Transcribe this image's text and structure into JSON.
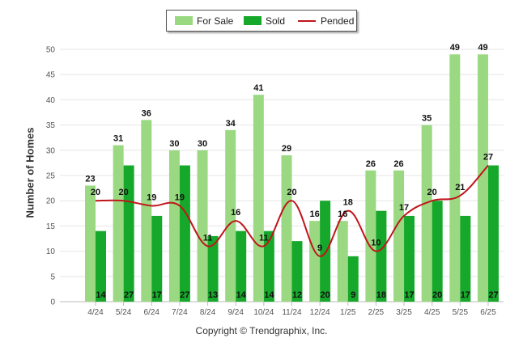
{
  "chart_data": {
    "type": "bar",
    "categories": [
      "4/24",
      "5/24",
      "6/24",
      "7/24",
      "8/24",
      "9/24",
      "10/24",
      "11/24",
      "12/24",
      "1/25",
      "2/25",
      "3/25",
      "4/25",
      "5/25",
      "6/25"
    ],
    "series": [
      {
        "name": "For Sale",
        "kind": "bar",
        "color": "#9ad982",
        "values": [
          23,
          31,
          36,
          30,
          30,
          34,
          41,
          29,
          16,
          16,
          26,
          26,
          35,
          49,
          49
        ]
      },
      {
        "name": "Sold",
        "kind": "bar",
        "color": "#16a82a",
        "values": [
          14,
          27,
          17,
          27,
          13,
          14,
          14,
          12,
          20,
          9,
          18,
          17,
          20,
          17,
          27
        ]
      },
      {
        "name": "Pended",
        "kind": "line",
        "color": "#c0151b",
        "values": [
          20,
          20,
          19,
          19,
          11,
          16,
          11,
          20,
          9,
          18,
          10,
          17,
          20,
          21,
          27
        ]
      }
    ],
    "ylabel": "Number of Homes",
    "xlabel": "",
    "ylim": [
      0,
      50
    ],
    "yticks": [
      0,
      5,
      10,
      15,
      20,
      25,
      30,
      35,
      40,
      45,
      50
    ],
    "grid": true,
    "legend_position": "top-center"
  },
  "footer": {
    "copyright": "Copyright © Trendgraphix, Inc."
  }
}
